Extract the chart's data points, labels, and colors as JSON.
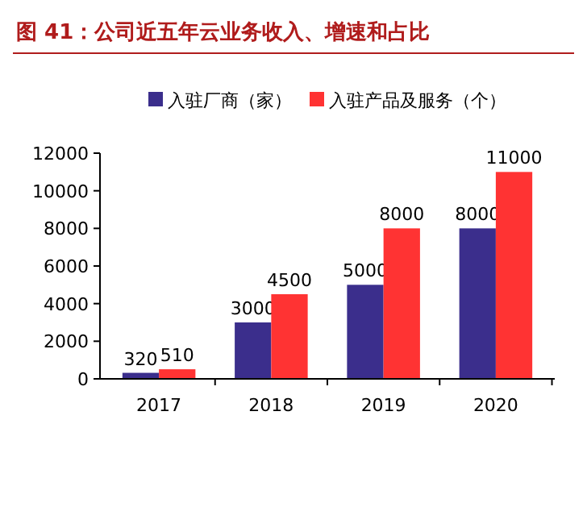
{
  "chart_data": {
    "type": "bar",
    "title": "图 41：公司近五年云业务收入、增速和占比",
    "categories": [
      "2017",
      "2018",
      "2019",
      "2020"
    ],
    "series": [
      {
        "name": "入驻厂商（家）",
        "color": "#3b2e8c",
        "values": [
          320,
          3000,
          5000,
          8000
        ]
      },
      {
        "name": "入驻产品及服务（个）",
        "color": "#ff3333",
        "values": [
          510,
          4500,
          8000,
          11000
        ]
      }
    ],
    "ylim": [
      0,
      12000
    ],
    "yticks": [
      0,
      2000,
      4000,
      6000,
      8000,
      10000,
      12000
    ],
    "data_labels": true,
    "legend": "top",
    "grid": false
  }
}
